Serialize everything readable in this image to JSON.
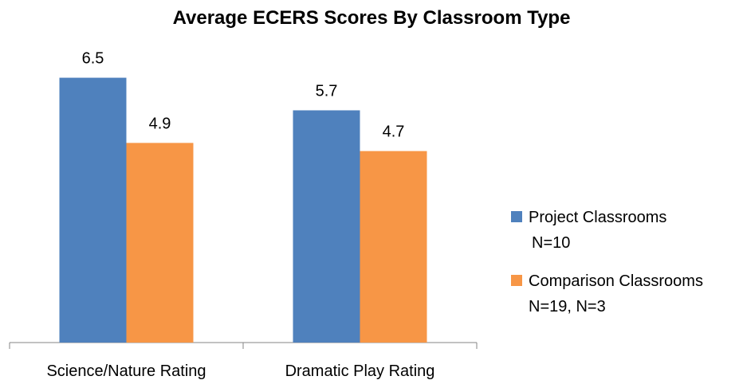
{
  "chart_data": {
    "type": "bar",
    "title": "Average ECERS Scores By Classroom Type",
    "categories": [
      "Science/Nature Rating",
      "Dramatic Play Rating"
    ],
    "series": [
      {
        "name": "Project Classrooms\nN=10",
        "color": "#4f81bd",
        "values": [
          6.5,
          5.7
        ]
      },
      {
        "name": "Comparison Classrooms\nN=19, N=3",
        "color": "#f79646",
        "values": [
          4.9,
          4.7
        ]
      }
    ],
    "ylim": [
      0,
      7
    ],
    "legend": "right"
  }
}
